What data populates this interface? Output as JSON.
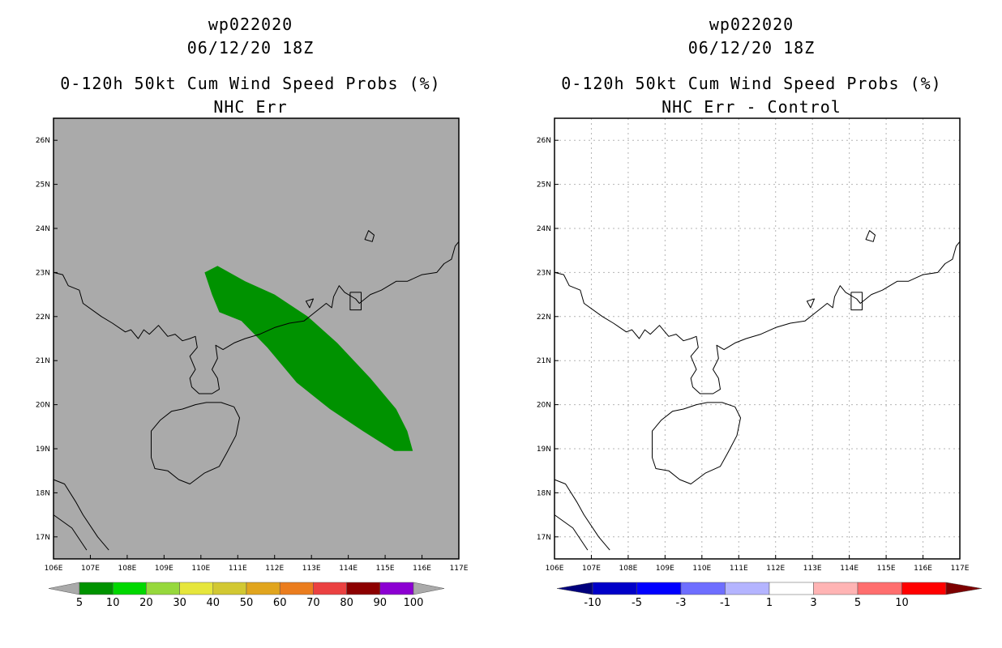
{
  "panels": [
    {
      "id": "left",
      "title_line1": "wp022020",
      "title_line2": "06/12/20 18Z",
      "title_line3": "0-120h 50kt Cum Wind Speed Probs (%)",
      "title_line4": "NHC Err",
      "background": "#aaaaaa",
      "gridlines": false,
      "colorbar": {
        "labels": [
          "5",
          "10",
          "20",
          "30",
          "40",
          "50",
          "60",
          "70",
          "80",
          "90",
          "100"
        ],
        "colors": [
          "#009200",
          "#00d800",
          "#96d83c",
          "#e6e63c",
          "#d2c832",
          "#e1a51e",
          "#eb7d1e",
          "#eb4141",
          "#8c0000",
          "#8c00d2"
        ],
        "end_color": "#aaaaaa"
      },
      "probability_area": {
        "level": "5-10",
        "color": "#009200",
        "vertices_lonlat": [
          [
            110.1,
            23.0
          ],
          [
            110.45,
            23.15
          ],
          [
            111.2,
            22.8
          ],
          [
            112.0,
            22.5
          ],
          [
            112.9,
            22.0
          ],
          [
            113.7,
            21.4
          ],
          [
            114.6,
            20.6
          ],
          [
            115.3,
            19.9
          ],
          [
            115.6,
            19.4
          ],
          [
            115.75,
            18.95
          ],
          [
            115.25,
            18.95
          ],
          [
            114.4,
            19.4
          ],
          [
            113.5,
            19.9
          ],
          [
            112.6,
            20.5
          ],
          [
            111.8,
            21.3
          ],
          [
            111.1,
            21.9
          ],
          [
            110.5,
            22.1
          ],
          [
            110.3,
            22.5
          ]
        ]
      }
    },
    {
      "id": "right",
      "title_line1": "wp022020",
      "title_line2": "06/12/20 18Z",
      "title_line3": "0-120h 50kt Cum Wind Speed Probs (%)",
      "title_line4": "NHC Err - Control",
      "background": "#ffffff",
      "gridlines": true,
      "colorbar": {
        "labels": [
          "-10",
          "-5",
          "-3",
          "-1",
          "1",
          "3",
          "5",
          "10"
        ],
        "colors": [
          "#0000c8",
          "#0000ff",
          "#6e6eff",
          "#b4b4ff",
          "#ffffff",
          "#ffb4b4",
          "#ff6e6e",
          "#ff0000"
        ],
        "start_color": "#00007d",
        "end_color": "#7d0000"
      }
    }
  ],
  "axes": {
    "lon_range": [
      106,
      117
    ],
    "lat_range": [
      16.5,
      26.5
    ],
    "x_ticks": [
      "106E",
      "107E",
      "108E",
      "109E",
      "110E",
      "111E",
      "112E",
      "113E",
      "114E",
      "115E",
      "116E",
      "117E"
    ],
    "y_ticks": [
      "17N",
      "18N",
      "19N",
      "20N",
      "21N",
      "22N",
      "23N",
      "24N",
      "25N",
      "26N"
    ]
  },
  "coastlines": {
    "mainland": [
      [
        106.0,
        23.0
      ],
      [
        106.25,
        22.95
      ],
      [
        106.4,
        22.7
      ],
      [
        106.7,
        22.6
      ],
      [
        106.8,
        22.3
      ],
      [
        107.3,
        22.0
      ],
      [
        107.6,
        21.85
      ],
      [
        107.95,
        21.65
      ],
      [
        108.1,
        21.7
      ],
      [
        108.3,
        21.5
      ],
      [
        108.45,
        21.7
      ],
      [
        108.6,
        21.6
      ],
      [
        108.85,
        21.8
      ],
      [
        109.1,
        21.55
      ],
      [
        109.3,
        21.6
      ],
      [
        109.5,
        21.45
      ],
      [
        109.7,
        21.5
      ],
      [
        109.85,
        21.55
      ],
      [
        109.9,
        21.3
      ],
      [
        109.7,
        21.1
      ],
      [
        109.85,
        20.8
      ],
      [
        109.7,
        20.6
      ],
      [
        109.75,
        20.4
      ],
      [
        109.95,
        20.25
      ],
      [
        110.3,
        20.25
      ],
      [
        110.5,
        20.35
      ],
      [
        110.45,
        20.6
      ],
      [
        110.3,
        20.8
      ],
      [
        110.45,
        21.05
      ],
      [
        110.4,
        21.35
      ],
      [
        110.6,
        21.25
      ],
      [
        110.9,
        21.4
      ],
      [
        111.2,
        21.5
      ],
      [
        111.6,
        21.6
      ],
      [
        112.0,
        21.75
      ],
      [
        112.4,
        21.85
      ],
      [
        112.8,
        21.9
      ],
      [
        113.1,
        22.1
      ],
      [
        113.4,
        22.3
      ],
      [
        113.55,
        22.2
      ],
      [
        113.6,
        22.45
      ],
      [
        113.75,
        22.7
      ],
      [
        113.9,
        22.55
      ],
      [
        114.2,
        22.4
      ],
      [
        114.3,
        22.3
      ],
      [
        114.6,
        22.5
      ],
      [
        114.9,
        22.6
      ],
      [
        115.3,
        22.8
      ],
      [
        115.6,
        22.8
      ],
      [
        116.0,
        22.95
      ],
      [
        116.4,
        23.0
      ],
      [
        116.6,
        23.2
      ],
      [
        116.8,
        23.3
      ],
      [
        116.9,
        23.6
      ],
      [
        117.0,
        23.7
      ]
    ],
    "hainan": [
      [
        110.15,
        20.05
      ],
      [
        110.55,
        20.05
      ],
      [
        110.9,
        19.95
      ],
      [
        111.05,
        19.7
      ],
      [
        110.95,
        19.3
      ],
      [
        110.7,
        18.9
      ],
      [
        110.5,
        18.6
      ],
      [
        110.1,
        18.45
      ],
      [
        109.7,
        18.2
      ],
      [
        109.4,
        18.3
      ],
      [
        109.1,
        18.5
      ],
      [
        108.75,
        18.55
      ],
      [
        108.65,
        18.8
      ],
      [
        108.65,
        19.2
      ],
      [
        108.65,
        19.4
      ],
      [
        108.9,
        19.65
      ],
      [
        109.2,
        19.85
      ],
      [
        109.5,
        19.9
      ],
      [
        109.85,
        20.0
      ],
      [
        110.15,
        20.05
      ]
    ],
    "vietnam": [
      [
        106.0,
        18.3
      ],
      [
        106.3,
        18.2
      ],
      [
        106.6,
        17.8
      ],
      [
        106.8,
        17.5
      ],
      [
        107.2,
        17.0
      ],
      [
        107.5,
        16.7
      ]
    ],
    "border": [
      [
        106.0,
        17.5
      ],
      [
        106.5,
        17.2
      ],
      [
        106.9,
        16.7
      ]
    ],
    "islands": [
      [
        [
          114.55,
          23.95
        ],
        [
          114.7,
          23.85
        ],
        [
          114.65,
          23.7
        ],
        [
          114.45,
          23.75
        ],
        [
          114.55,
          23.95
        ]
      ],
      [
        [
          112.85,
          22.35
        ],
        [
          113.05,
          22.4
        ],
        [
          112.95,
          22.2
        ],
        [
          112.85,
          22.35
        ]
      ]
    ],
    "box": [
      [
        114.05,
        22.55
      ],
      [
        114.35,
        22.55
      ],
      [
        114.35,
        22.15
      ],
      [
        114.05,
        22.15
      ],
      [
        114.05,
        22.55
      ]
    ]
  }
}
